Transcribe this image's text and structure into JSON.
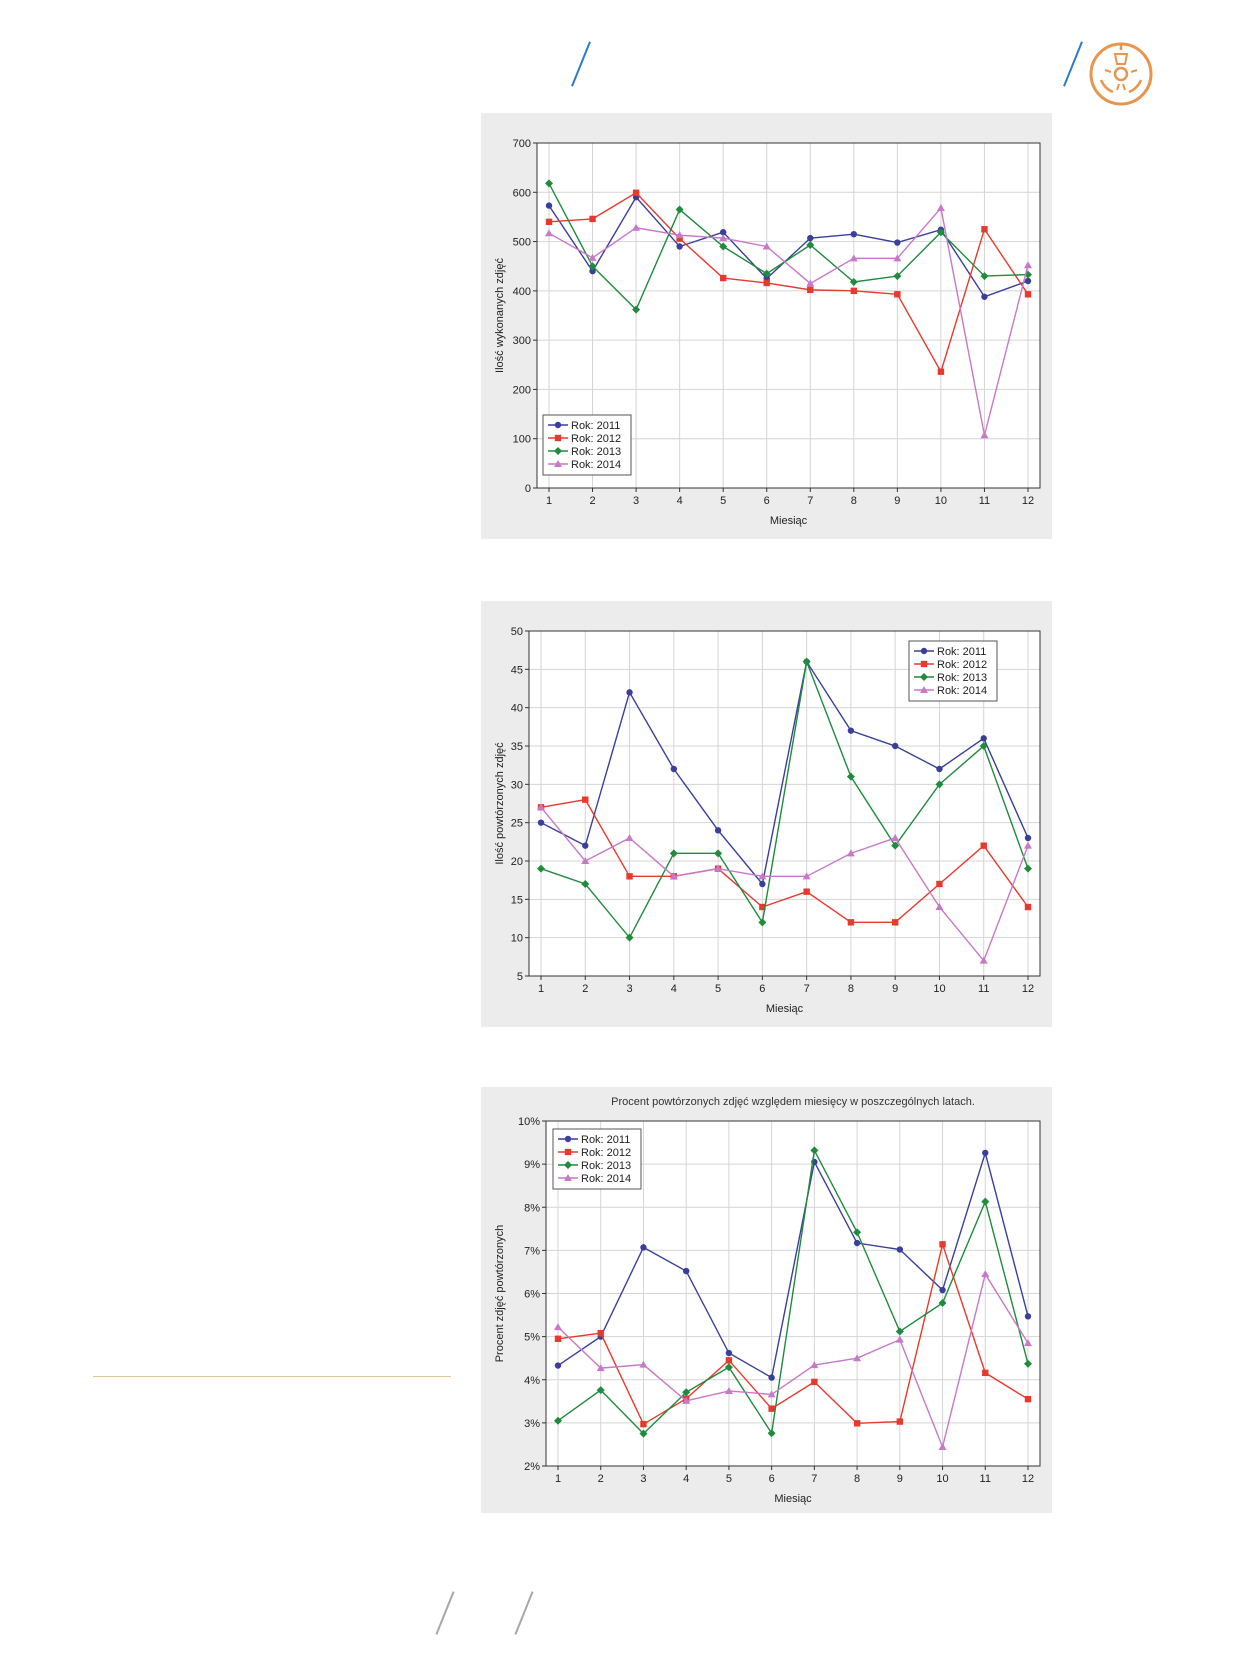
{
  "colors": {
    "accent_blue": "#2a7cc8",
    "logo_orange": "#e8954d",
    "separator": "#dcc79b",
    "series": [
      "#3a3f99",
      "#e8392f",
      "#1f8b3c",
      "#c878c8"
    ]
  },
  "header": {
    "logo_icon": "radiation-gear-icon"
  },
  "chart_data": [
    {
      "type": "line",
      "title": "",
      "xlabel": "Miesiąc",
      "ylabel": "Ilość wykonanych zdjęć",
      "x": [
        1,
        2,
        3,
        4,
        5,
        6,
        7,
        8,
        9,
        10,
        11,
        12
      ],
      "xticks": [
        "1",
        "2",
        "3",
        "4",
        "5",
        "6",
        "7",
        "8",
        "9",
        "10",
        "11",
        "12"
      ],
      "ylim": [
        0,
        700
      ],
      "yticks": [
        0,
        100,
        200,
        300,
        400,
        500,
        600,
        700
      ],
      "ytick_labels": [
        "0",
        "100",
        "200",
        "300",
        "400",
        "500",
        "600",
        "700"
      ],
      "grid": true,
      "legend_position": "bottom-left",
      "series": [
        {
          "name": "Rok: 2011",
          "marker": "circle",
          "values": [
            573,
            440,
            590,
            490,
            519,
            425,
            507,
            515,
            498,
            524,
            388,
            420
          ]
        },
        {
          "name": "Rok: 2012",
          "marker": "square",
          "values": [
            540,
            546,
            599,
            506,
            426,
            416,
            402,
            400,
            393,
            236,
            525,
            393
          ]
        },
        {
          "name": "Rok: 2013",
          "marker": "diamond",
          "values": [
            618,
            450,
            362,
            565,
            490,
            435,
            493,
            418,
            430,
            519,
            430,
            433
          ]
        },
        {
          "name": "Rok: 2014",
          "marker": "triangle",
          "values": [
            517,
            467,
            528,
            513,
            507,
            490,
            415,
            466,
            466,
            568,
            107,
            452
          ]
        }
      ]
    },
    {
      "type": "line",
      "title": "",
      "xlabel": "Miesiąc",
      "ylabel": "Ilość powtórzonych zdjęć",
      "x": [
        1,
        2,
        3,
        4,
        5,
        6,
        7,
        8,
        9,
        10,
        11,
        12
      ],
      "xticks": [
        "1",
        "2",
        "3",
        "4",
        "5",
        "6",
        "7",
        "8",
        "9",
        "10",
        "11",
        "12"
      ],
      "ylim": [
        5,
        50
      ],
      "yticks": [
        5,
        10,
        15,
        20,
        25,
        30,
        35,
        40,
        45,
        50
      ],
      "ytick_labels": [
        "5",
        "10",
        "15",
        "20",
        "25",
        "30",
        "35",
        "40",
        "45",
        "50"
      ],
      "grid": true,
      "legend_position": "top-right",
      "series": [
        {
          "name": "Rok: 2011",
          "marker": "circle",
          "values": [
            25,
            22,
            42,
            32,
            24,
            17,
            46,
            37,
            35,
            32,
            36,
            23
          ]
        },
        {
          "name": "Rok: 2012",
          "marker": "square",
          "values": [
            27,
            28,
            18,
            18,
            19,
            14,
            16,
            12,
            12,
            17,
            22,
            14
          ]
        },
        {
          "name": "Rok: 2013",
          "marker": "diamond",
          "values": [
            19,
            17,
            10,
            21,
            21,
            12,
            46,
            31,
            22,
            30,
            35,
            19
          ]
        },
        {
          "name": "Rok: 2014",
          "marker": "triangle",
          "values": [
            27,
            20,
            23,
            18,
            19,
            18,
            18,
            21,
            23,
            14,
            7,
            22
          ]
        }
      ]
    },
    {
      "type": "line",
      "title": "Procent powtórzonych zdjęć względem miesięcy w poszczególnych latach.",
      "xlabel": "Miesiąc",
      "ylabel": "Procent zdjęć powtórzonych",
      "x": [
        1,
        2,
        3,
        4,
        5,
        6,
        7,
        8,
        9,
        10,
        11,
        12
      ],
      "xticks": [
        "1",
        "2",
        "3",
        "4",
        "5",
        "6",
        "7",
        "8",
        "9",
        "10",
        "11",
        "12"
      ],
      "ylim": [
        2,
        10
      ],
      "yticks": [
        2,
        3,
        4,
        5,
        6,
        7,
        8,
        9,
        10
      ],
      "ytick_labels": [
        "2%",
        "3%",
        "4%",
        "5%",
        "6%",
        "7%",
        "8%",
        "9%",
        "10%"
      ],
      "grid": true,
      "legend_position": "top-left",
      "series": [
        {
          "name": "Rok: 2011",
          "marker": "circle",
          "values": [
            4.33,
            5.0,
            7.07,
            6.52,
            4.62,
            4.05,
            9.05,
            7.17,
            7.02,
            6.08,
            9.26,
            5.47
          ]
        },
        {
          "name": "Rok: 2012",
          "marker": "square",
          "values": [
            4.95,
            5.08,
            2.97,
            3.56,
            4.45,
            3.33,
            3.95,
            2.99,
            3.03,
            7.14,
            4.16,
            3.55
          ]
        },
        {
          "name": "Rok: 2013",
          "marker": "diamond",
          "values": [
            3.05,
            3.76,
            2.75,
            3.71,
            4.29,
            2.76,
            9.32,
            7.42,
            5.12,
            5.78,
            8.13,
            4.37
          ]
        },
        {
          "name": "Rok: 2014",
          "marker": "triangle",
          "values": [
            5.22,
            4.27,
            4.35,
            3.51,
            3.74,
            3.66,
            4.34,
            4.5,
            4.93,
            2.44,
            6.45,
            4.85
          ]
        }
      ]
    }
  ]
}
